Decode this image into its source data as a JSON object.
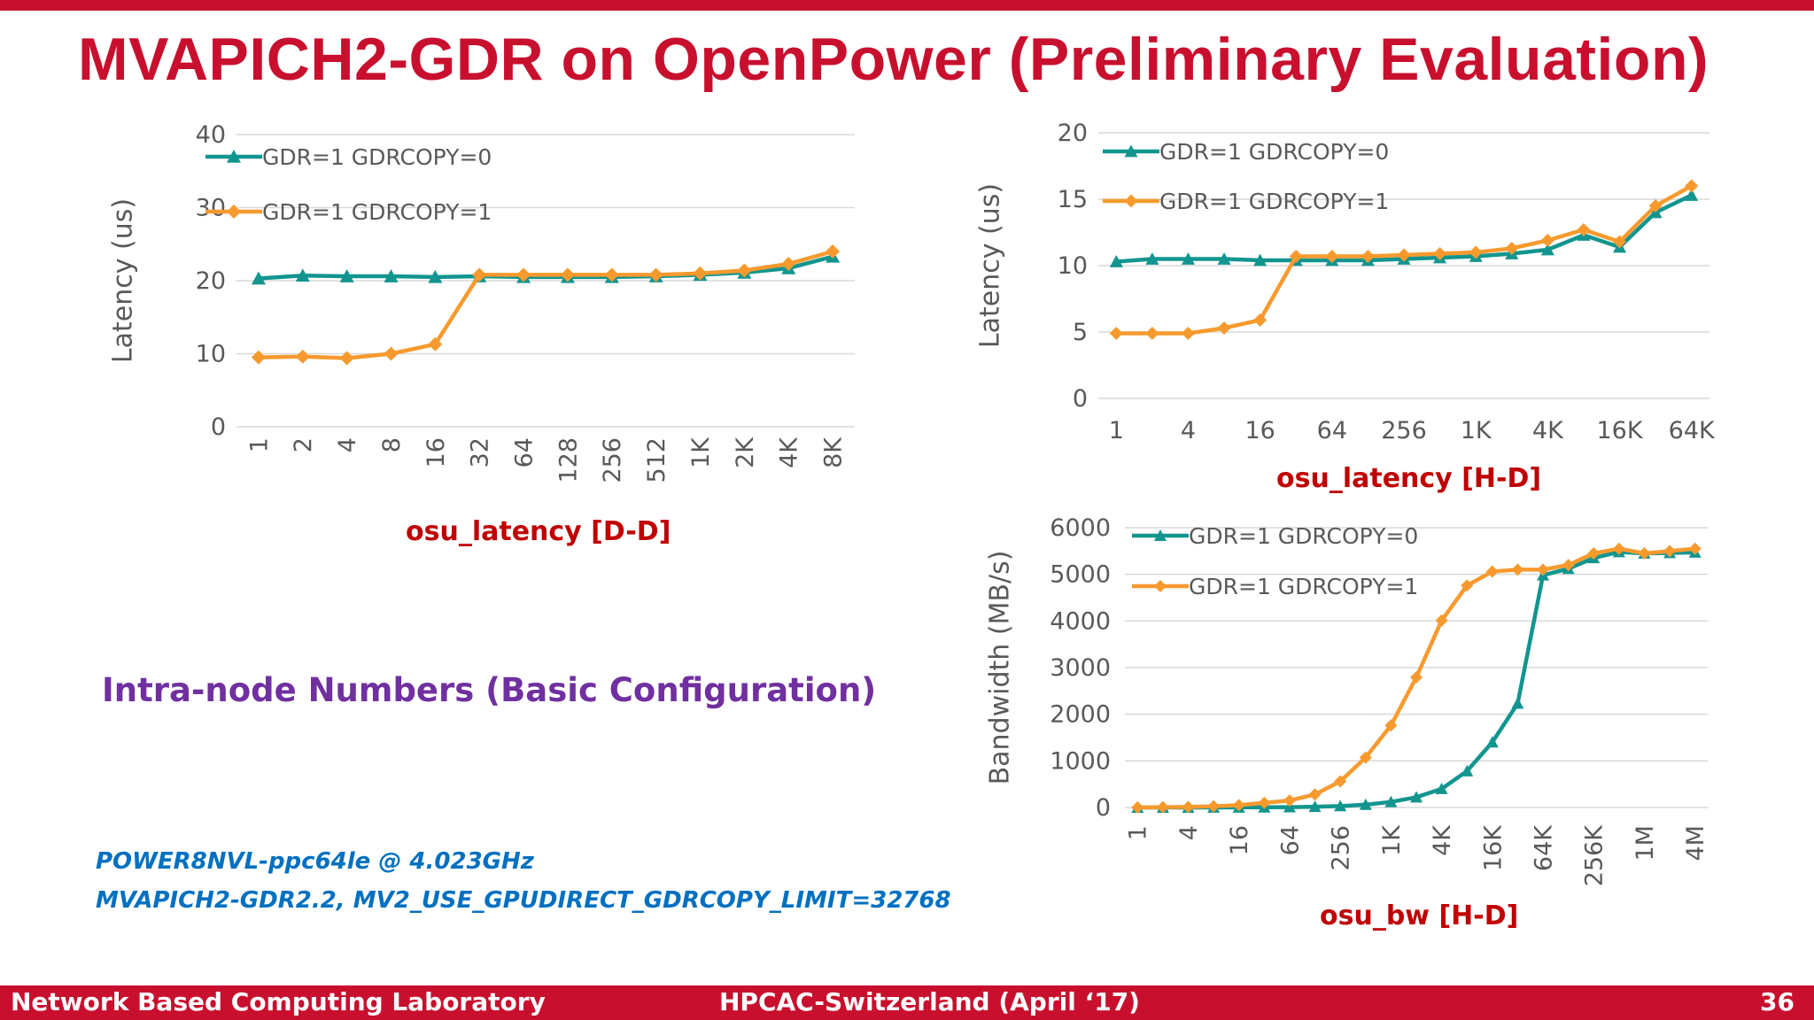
{
  "slide": {
    "title": "MVAPICH2-GDR on OpenPower (Preliminary Evaluation)",
    "subtitle": "Intra-node Numbers (Basic Configuration)",
    "notes": [
      "POWER8NVL-ppc64le @ 4.023GHz",
      "MVAPICH2-GDR2.2, MV2_USE_GPUDIRECT_GDRCOPY_LIMIT=32768"
    ],
    "footer": {
      "left": "Network Based Computing Laboratory",
      "center": "HPCAC-Switzerland (April ‘17)",
      "page": "36"
    },
    "colors": {
      "accent": "#c8102e",
      "series_0": "#12958f",
      "series_1": "#f79a2e",
      "subtitle": "#7030a0",
      "note": "#0070c0"
    }
  },
  "chart_data": [
    {
      "id": "dd",
      "type": "line",
      "title": "osu_latency [D-D]",
      "xlabel": "osu_latency [D-D]",
      "ylabel": "Latency (us)",
      "categories": [
        "1",
        "2",
        "4",
        "8",
        "16",
        "32",
        "64",
        "128",
        "256",
        "512",
        "1K",
        "2K",
        "4K",
        "8K"
      ],
      "tick_labels": [
        "1",
        "2",
        "4",
        "8",
        "16",
        "32",
        "64",
        "128",
        "256",
        "512",
        "1K",
        "2K",
        "4K",
        "8K"
      ],
      "x_rotated": true,
      "ylim": [
        0,
        40
      ],
      "yticks": [
        0,
        10,
        20,
        30,
        40
      ],
      "grid": true,
      "legend_position": "top-left",
      "series": [
        {
          "name": "GDR=1 GDRCOPY=0",
          "marker": "triangle",
          "values": [
            20.3,
            20.7,
            20.6,
            20.6,
            20.5,
            20.6,
            20.5,
            20.5,
            20.5,
            20.6,
            20.8,
            21.1,
            21.7,
            23.3
          ]
        },
        {
          "name": "GDR=1 GDRCOPY=1",
          "marker": "diamond",
          "values": [
            9.5,
            9.6,
            9.4,
            10.0,
            11.3,
            20.8,
            20.8,
            20.8,
            20.8,
            20.8,
            21.0,
            21.4,
            22.3,
            24.0
          ]
        }
      ]
    },
    {
      "id": "hd",
      "type": "line",
      "title": "osu_latency [H-D]",
      "xlabel": "osu_latency [H-D]",
      "ylabel": "Latency (us)",
      "categories": [
        "1",
        "2",
        "4",
        "8",
        "16",
        "32",
        "64",
        "128",
        "256",
        "512",
        "1K",
        "2K",
        "4K",
        "8K",
        "16K",
        "32K",
        "64K"
      ],
      "tick_labels": [
        "1",
        "",
        "4",
        "",
        "16",
        "",
        "64",
        "",
        "256",
        "",
        "1K",
        "",
        "4K",
        "",
        "16K",
        "",
        "64K"
      ],
      "x_rotated": false,
      "ylim": [
        0,
        20
      ],
      "yticks": [
        0,
        5,
        10,
        15,
        20
      ],
      "grid": true,
      "legend_position": "top-left",
      "series": [
        {
          "name": "GDR=1 GDRCOPY=0",
          "marker": "triangle",
          "values": [
            10.3,
            10.5,
            10.5,
            10.5,
            10.4,
            10.4,
            10.4,
            10.4,
            10.5,
            10.6,
            10.7,
            10.9,
            11.2,
            12.3,
            11.4,
            14.0,
            15.3
          ]
        },
        {
          "name": "GDR=1 GDRCOPY=1",
          "marker": "diamond",
          "values": [
            4.9,
            4.9,
            4.9,
            5.3,
            5.9,
            10.7,
            10.7,
            10.7,
            10.8,
            10.9,
            11.0,
            11.3,
            11.9,
            12.7,
            11.8,
            14.5,
            16.0
          ]
        }
      ]
    },
    {
      "id": "bw",
      "type": "line",
      "title": "osu_bw [H-D]",
      "xlabel": "osu_bw [H-D]",
      "ylabel": "Bandwidth (MB/s)",
      "categories": [
        "1",
        "2",
        "4",
        "8",
        "16",
        "32",
        "64",
        "128",
        "256",
        "512",
        "1K",
        "2K",
        "4K",
        "8K",
        "16K",
        "32K",
        "64K",
        "128K",
        "256K",
        "512K",
        "1M",
        "2M",
        "4M"
      ],
      "tick_labels": [
        "1",
        "",
        "4",
        "",
        "16",
        "",
        "64",
        "",
        "256",
        "",
        "1K",
        "",
        "4K",
        "",
        "16K",
        "",
        "64K",
        "",
        "256K",
        "",
        "1M",
        "",
        "4M"
      ],
      "x_rotated": true,
      "ylim": [
        0,
        6000
      ],
      "yticks": [
        0,
        1000,
        2000,
        3000,
        4000,
        5000,
        6000
      ],
      "grid": true,
      "legend_position": "top-left",
      "series": [
        {
          "name": "GDR=1 GDRCOPY=0",
          "marker": "triangle",
          "values": [
            0,
            0,
            0,
            1,
            2,
            4,
            8,
            16,
            32,
            60,
            120,
            220,
            400,
            780,
            1400,
            2230,
            4980,
            5120,
            5350,
            5480,
            5450,
            5460,
            5470
          ]
        },
        {
          "name": "GDR=1 GDRCOPY=1",
          "marker": "diamond",
          "values": [
            3,
            6,
            12,
            25,
            50,
            100,
            150,
            280,
            560,
            1070,
            1760,
            2790,
            4010,
            4760,
            5060,
            5100,
            5100,
            5200,
            5450,
            5550,
            5450,
            5500,
            5550
          ]
        }
      ]
    }
  ]
}
